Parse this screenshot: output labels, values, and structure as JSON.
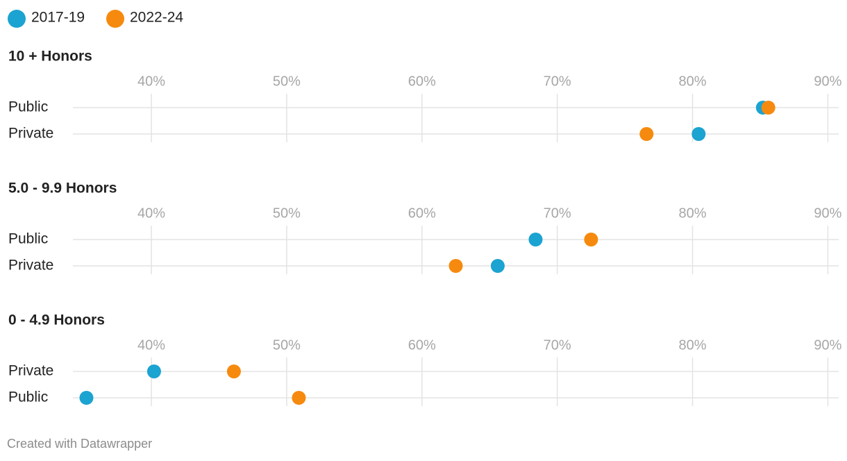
{
  "chart_data": [
    {
      "type": "dot",
      "title": "10 + Honors",
      "categories": [
        "Public",
        "Private"
      ],
      "series": [
        {
          "name": "2017-19",
          "color": "#1ba3d1",
          "values": [
            85.2,
            80.45
          ]
        },
        {
          "name": "2022-24",
          "color": "#f68a0e",
          "values": [
            85.6,
            76.6
          ]
        }
      ],
      "xlim": [
        34.2,
        90.8
      ],
      "xticks": [
        {
          "value": 40,
          "label": "40%"
        },
        {
          "value": 50,
          "label": "50%"
        },
        {
          "value": 60,
          "label": "60%"
        },
        {
          "value": 70,
          "label": "70%"
        },
        {
          "value": 80,
          "label": "80%"
        },
        {
          "value": 90,
          "label": "90%"
        }
      ],
      "grid": true
    },
    {
      "type": "dot",
      "title": "5.0 - 9.9 Honors",
      "categories": [
        "Public",
        "Private"
      ],
      "series": [
        {
          "name": "2017-19",
          "color": "#1ba3d1",
          "values": [
            68.4,
            65.6
          ]
        },
        {
          "name": "2022-24",
          "color": "#f68a0e",
          "values": [
            72.5,
            62.5
          ]
        }
      ],
      "xlim": [
        34.2,
        90.8
      ],
      "xticks": [
        {
          "value": 40,
          "label": "40%"
        },
        {
          "value": 50,
          "label": "50%"
        },
        {
          "value": 60,
          "label": "60%"
        },
        {
          "value": 70,
          "label": "70%"
        },
        {
          "value": 80,
          "label": "80%"
        },
        {
          "value": 90,
          "label": "90%"
        }
      ],
      "grid": true
    },
    {
      "type": "dot",
      "title": "0 - 4.9 Honors",
      "categories": [
        "Private",
        "Public"
      ],
      "series": [
        {
          "name": "2017-19",
          "color": "#1ba3d1",
          "values": [
            40.2,
            35.2
          ]
        },
        {
          "name": "2022-24",
          "color": "#f68a0e",
          "values": [
            46.1,
            50.9
          ]
        }
      ],
      "xlim": [
        34.2,
        90.8
      ],
      "xticks": [
        {
          "value": 40,
          "label": "40%"
        },
        {
          "value": 50,
          "label": "50%"
        },
        {
          "value": 60,
          "label": "60%"
        },
        {
          "value": 70,
          "label": "70%"
        },
        {
          "value": 80,
          "label": "80%"
        },
        {
          "value": 90,
          "label": "90%"
        }
      ],
      "grid": true
    }
  ],
  "footer": "Created with Datawrapper"
}
